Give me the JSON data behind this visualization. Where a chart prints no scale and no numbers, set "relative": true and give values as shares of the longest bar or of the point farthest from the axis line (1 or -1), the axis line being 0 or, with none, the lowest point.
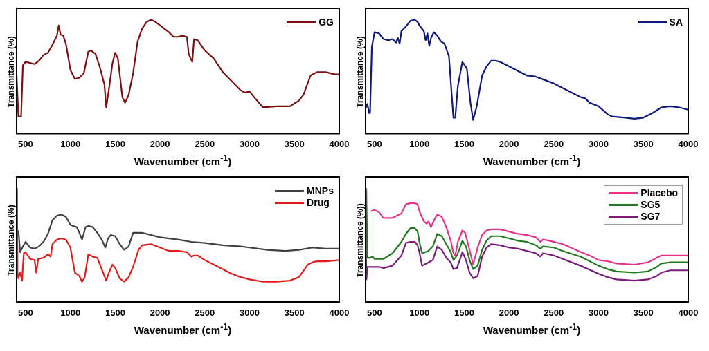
{
  "chart_data": [
    {
      "type": "line",
      "relative": true,
      "xlabel": "Wavenumber (cm$^{-1}$)",
      "ylabel": "Transmittance (%)",
      "xlim": [
        400,
        4000
      ],
      "xticks": [
        500,
        1000,
        1500,
        2000,
        2500,
        3000,
        3500,
        4000
      ],
      "legend": "top right",
      "series": [
        {
          "name": "GG",
          "color": "#7b1113",
          "x": [
            400,
            420,
            450,
            470,
            500,
            550,
            600,
            650,
            700,
            750,
            800,
            850,
            870,
            890,
            920,
            950,
            1000,
            1050,
            1100,
            1150,
            1200,
            1230,
            1280,
            1330,
            1380,
            1400,
            1430,
            1470,
            1500,
            1530,
            1580,
            1610,
            1650,
            1700,
            1750,
            1800,
            1850,
            1900,
            1950,
            2000,
            2100,
            2150,
            2200,
            2250,
            2300,
            2320,
            2360,
            2380,
            2420,
            2500,
            2600,
            2700,
            2800,
            2900,
            2950,
            3000,
            3050,
            3150,
            3300,
            3450,
            3550,
            3600,
            3680,
            3750,
            3850,
            3950,
            4000
          ],
          "values": [
            0.51,
            0.15,
            0.15,
            0.6,
            0.63,
            0.62,
            0.61,
            0.64,
            0.69,
            0.71,
            0.78,
            0.86,
            0.95,
            0.87,
            0.86,
            0.79,
            0.56,
            0.48,
            0.49,
            0.53,
            0.72,
            0.73,
            0.7,
            0.58,
            0.43,
            0.23,
            0.39,
            0.62,
            0.71,
            0.66,
            0.32,
            0.27,
            0.34,
            0.53,
            0.81,
            0.92,
            0.98,
            1,
            0.98,
            0.95,
            0.89,
            0.85,
            0.85,
            0.86,
            0.85,
            0.7,
            0.63,
            0.83,
            0.82,
            0.73,
            0.66,
            0.54,
            0.46,
            0.38,
            0.36,
            0.37,
            0.32,
            0.23,
            0.24,
            0.24,
            0.29,
            0.34,
            0.51,
            0.54,
            0.54,
            0.52,
            0.52
          ]
        }
      ]
    },
    {
      "type": "line",
      "relative": true,
      "xlabel": "Wavenumber (cm$^{-1}$)",
      "ylabel": "Transmittance (%)",
      "xlim": [
        400,
        4000
      ],
      "xticks": [
        500,
        1000,
        1500,
        2000,
        2500,
        3000,
        3500,
        4000
      ],
      "legend": "top right",
      "series": [
        {
          "name": "SA",
          "color": "#0d1a7a",
          "x": [
            400,
            420,
            440,
            450,
            470,
            500,
            550,
            600,
            650,
            700,
            740,
            760,
            780,
            800,
            850,
            900,
            950,
            980,
            1000,
            1050,
            1070,
            1090,
            1110,
            1130,
            1160,
            1200,
            1240,
            1280,
            1330,
            1360,
            1380,
            1400,
            1430,
            1480,
            1530,
            1570,
            1600,
            1640,
            1700,
            1750,
            1800,
            1850,
            1900,
            2000,
            2100,
            2200,
            2300,
            2400,
            2500,
            2600,
            2700,
            2800,
            2850,
            2900,
            3000,
            3100,
            3150,
            3300,
            3400,
            3500,
            3600,
            3700,
            3800,
            3900,
            4000
          ],
          "values": [
            0.22,
            0.26,
            0.18,
            0.18,
            0.76,
            0.89,
            0.88,
            0.83,
            0.82,
            0.83,
            0.8,
            0.84,
            0.79,
            0.9,
            0.94,
            0.99,
            1,
            0.98,
            0.95,
            0.9,
            0.82,
            0.88,
            0.77,
            0.84,
            0.89,
            0.86,
            0.81,
            0.79,
            0.68,
            0.35,
            0.14,
            0.14,
            0.42,
            0.63,
            0.57,
            0.27,
            0.12,
            0.24,
            0.51,
            0.59,
            0.64,
            0.64,
            0.63,
            0.59,
            0.55,
            0.51,
            0.5,
            0.47,
            0.44,
            0.4,
            0.36,
            0.32,
            0.31,
            0.27,
            0.24,
            0.17,
            0.15,
            0.14,
            0.13,
            0.14,
            0.18,
            0.23,
            0.24,
            0.23,
            0.21
          ]
        }
      ]
    },
    {
      "type": "line",
      "relative": true,
      "xlabel": "Wavenumber (cm$^{-1}$)",
      "ylabel": "Transmittance (%)",
      "xlim": [
        400,
        4000
      ],
      "xticks": [
        500,
        1000,
        1500,
        2000,
        2500,
        3000,
        3500,
        4000
      ],
      "legend": "top right",
      "series": [
        {
          "name": "MNPs",
          "color": "#404040",
          "x": [
            420,
            440,
            470,
            500,
            550,
            600,
            650,
            700,
            750,
            800,
            850,
            900,
            950,
            1000,
            1030,
            1070,
            1100,
            1130,
            1170,
            1200,
            1250,
            1300,
            1350,
            1390,
            1420,
            1450,
            1500,
            1550,
            1600,
            1650,
            1700,
            1750,
            1800,
            1900,
            2000,
            2200,
            2350,
            2500,
            2700,
            2900,
            3000,
            3200,
            3400,
            3550,
            3700,
            3850,
            4000
          ],
          "values": [
            0.63,
            0.44,
            0.49,
            0.53,
            0.48,
            0.47,
            0.49,
            0.53,
            0.6,
            0.72,
            0.76,
            0.77,
            0.75,
            0.68,
            0.67,
            0.66,
            0.61,
            0.55,
            0.66,
            0.67,
            0.66,
            0.61,
            0.55,
            0.48,
            0.56,
            0.59,
            0.58,
            0.51,
            0.46,
            0.49,
            0.61,
            0.61,
            0.61,
            0.59,
            0.57,
            0.55,
            0.53,
            0.52,
            0.5,
            0.49,
            0.48,
            0.46,
            0.45,
            0.46,
            0.48,
            0.47,
            0.47
          ]
        },
        {
          "name": "Drug",
          "color": "#e01b1b",
          "x": [
            405,
            410,
            420,
            440,
            460,
            480,
            500,
            550,
            600,
            620,
            640,
            700,
            750,
            780,
            800,
            850,
            900,
            950,
            1000,
            1050,
            1100,
            1130,
            1160,
            1200,
            1250,
            1300,
            1350,
            1400,
            1430,
            1470,
            1500,
            1550,
            1600,
            1650,
            1700,
            1720,
            1760,
            1800,
            1900,
            2000,
            2100,
            2200,
            2300,
            2350,
            2380,
            2420,
            2500,
            2600,
            2800,
            2900,
            3000,
            3150,
            3300,
            3450,
            3550,
            3650,
            3700,
            3750,
            3850,
            4000
          ],
          "values": [
            1,
            0.26,
            0.21,
            0.26,
            0.19,
            0.43,
            0.44,
            0.38,
            0.37,
            0.26,
            0.38,
            0.39,
            0.42,
            0.4,
            0.51,
            0.55,
            0.56,
            0.55,
            0.48,
            0.26,
            0.23,
            0.18,
            0.22,
            0.42,
            0.4,
            0.39,
            0.29,
            0.19,
            0.26,
            0.33,
            0.3,
            0.21,
            0.18,
            0.22,
            0.31,
            0.36,
            0.46,
            0.5,
            0.51,
            0.48,
            0.45,
            0.45,
            0.44,
            0.4,
            0.41,
            0.41,
            0.37,
            0.33,
            0.25,
            0.22,
            0.2,
            0.18,
            0.18,
            0.19,
            0.22,
            0.33,
            0.35,
            0.36,
            0.36,
            0.37
          ]
        }
      ]
    },
    {
      "type": "line",
      "relative": true,
      "xlabel": "Wavenumber (cm$^{-1}$)",
      "ylabel": "Transmittance (%))",
      "xlim": [
        400,
        4000
      ],
      "xticks": [
        500,
        1000,
        1500,
        2000,
        2500,
        3000,
        3500,
        4000
      ],
      "legend": "top right",
      "series": [
        {
          "name": "Placebo",
          "color": "#e6338a",
          "x": [
            460,
            500,
            550,
            600,
            650,
            700,
            750,
            800,
            850,
            900,
            950,
            980,
            1000,
            1050,
            1080,
            1100,
            1130,
            1170,
            1200,
            1250,
            1300,
            1350,
            1380,
            1400,
            1430,
            1480,
            1510,
            1550,
            1600,
            1650,
            1700,
            1750,
            1800,
            1900,
            2000,
            2100,
            2200,
            2300,
            2350,
            2380,
            2450,
            2600,
            2800,
            2900,
            3000,
            3100,
            3200,
            3400,
            3550,
            3650,
            3700,
            3800,
            4000
          ],
          "values": [
            0.8,
            0.81,
            0.79,
            0.74,
            0.74,
            0.74,
            0.76,
            0.78,
            0.86,
            0.87,
            0.87,
            0.86,
            0.8,
            0.71,
            0.69,
            0.71,
            0.66,
            0.73,
            0.77,
            0.75,
            0.66,
            0.54,
            0.43,
            0.41,
            0.53,
            0.63,
            0.61,
            0.49,
            0.33,
            0.48,
            0.59,
            0.63,
            0.64,
            0.64,
            0.62,
            0.6,
            0.59,
            0.57,
            0.53,
            0.55,
            0.54,
            0.51,
            0.44,
            0.41,
            0.37,
            0.36,
            0.34,
            0.33,
            0.35,
            0.39,
            0.41,
            0.41,
            0.41
          ]
        },
        {
          "name": "SG5",
          "color": "#1f7a1f",
          "x": [
            408,
            420,
            450,
            480,
            500,
            550,
            600,
            700,
            800,
            850,
            900,
            950,
            980,
            1000,
            1030,
            1100,
            1150,
            1200,
            1250,
            1300,
            1350,
            1380,
            1420,
            1480,
            1520,
            1560,
            1600,
            1650,
            1700,
            1750,
            1800,
            1900,
            2000,
            2100,
            2200,
            2300,
            2350,
            2380,
            2500,
            2600,
            2800,
            3000,
            3100,
            3200,
            3400,
            3550,
            3650,
            3700,
            3800,
            4000
          ],
          "values": [
            1,
            0.39,
            0.39,
            0.4,
            0.38,
            0.38,
            0.38,
            0.43,
            0.53,
            0.6,
            0.65,
            0.65,
            0.62,
            0.53,
            0.43,
            0.45,
            0.49,
            0.6,
            0.58,
            0.51,
            0.44,
            0.37,
            0.41,
            0.54,
            0.49,
            0.37,
            0.29,
            0.32,
            0.46,
            0.54,
            0.58,
            0.58,
            0.56,
            0.54,
            0.53,
            0.5,
            0.47,
            0.49,
            0.48,
            0.45,
            0.4,
            0.32,
            0.29,
            0.27,
            0.26,
            0.27,
            0.31,
            0.34,
            0.35,
            0.35
          ]
        },
        {
          "name": "SG7",
          "color": "#7a1a7a",
          "x": [
            400,
            410,
            420,
            450,
            500,
            550,
            600,
            700,
            800,
            850,
            900,
            950,
            980,
            1000,
            1030,
            1080,
            1150,
            1200,
            1250,
            1300,
            1350,
            1380,
            1420,
            1480,
            1520,
            1560,
            1600,
            1650,
            1700,
            1750,
            1800,
            1900,
            2000,
            2100,
            2200,
            2300,
            2350,
            2380,
            2500,
            2600,
            2800,
            3000,
            3100,
            3200,
            3400,
            3550,
            3650,
            3700,
            3800,
            4000
          ],
          "values": [
            0.76,
            0.2,
            0.31,
            0.31,
            0.31,
            0.31,
            0.3,
            0.32,
            0.41,
            0.52,
            0.53,
            0.53,
            0.5,
            0.44,
            0.32,
            0.34,
            0.37,
            0.49,
            0.46,
            0.39,
            0.35,
            0.29,
            0.3,
            0.44,
            0.37,
            0.26,
            0.21,
            0.23,
            0.4,
            0.48,
            0.51,
            0.5,
            0.48,
            0.47,
            0.45,
            0.43,
            0.4,
            0.43,
            0.41,
            0.38,
            0.32,
            0.25,
            0.22,
            0.2,
            0.19,
            0.2,
            0.23,
            0.26,
            0.28,
            0.28
          ]
        }
      ]
    }
  ]
}
